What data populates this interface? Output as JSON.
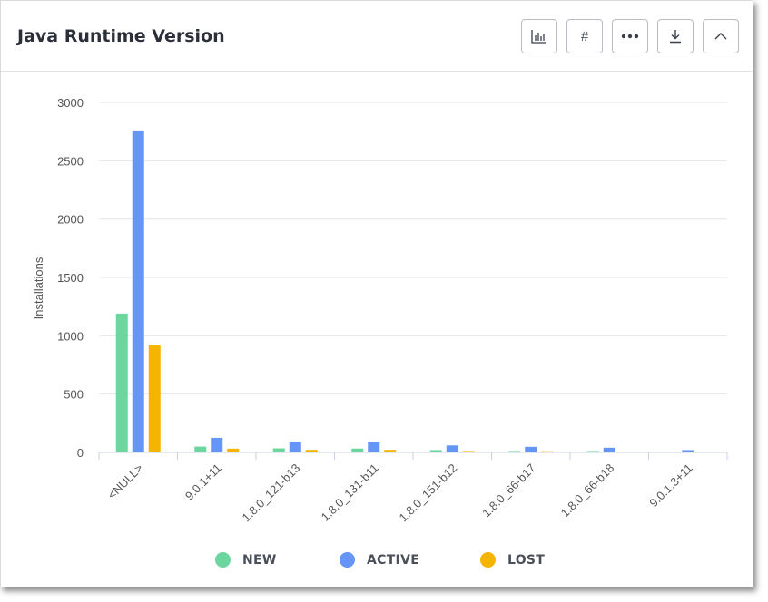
{
  "header": {
    "title": "Java Runtime Version",
    "buttons": [
      {
        "name": "chart-type-button",
        "icon": "bar-chart-icon",
        "label": ""
      },
      {
        "name": "show-values-button",
        "icon": "hash-icon",
        "label": "#"
      },
      {
        "name": "more-options-button",
        "icon": "more-horizontal-icon",
        "label": "•••"
      },
      {
        "name": "download-button",
        "icon": "download-icon",
        "label": ""
      },
      {
        "name": "collapse-button",
        "icon": "chevron-up-icon",
        "label": ""
      }
    ]
  },
  "chart_data": {
    "type": "bar",
    "ylabel": "Installations",
    "ylim": [
      0,
      3000
    ],
    "yticks": [
      0,
      500,
      1000,
      1500,
      2000,
      2500,
      3000
    ],
    "grid": true,
    "legend_position": "bottom",
    "categories": [
      "<NULL>",
      "9.0.1+11",
      "1.8.0_121-b13",
      "1.8.0_131-b11",
      "1.8.0_151-b12",
      "1.8.0_66-b17",
      "1.8.0_66-b18",
      "9.0.1.3+11"
    ],
    "series": [
      {
        "name": "NEW",
        "color": "#6cd69e",
        "values": [
          1190,
          50,
          35,
          33,
          20,
          12,
          12,
          0
        ]
      },
      {
        "name": "ACTIVE",
        "color": "#6495f7",
        "values": [
          2760,
          125,
          90,
          88,
          60,
          48,
          40,
          20
        ]
      },
      {
        "name": "LOST",
        "color": "#f5b400",
        "values": [
          920,
          32,
          22,
          22,
          12,
          10,
          0,
          0
        ]
      }
    ]
  }
}
